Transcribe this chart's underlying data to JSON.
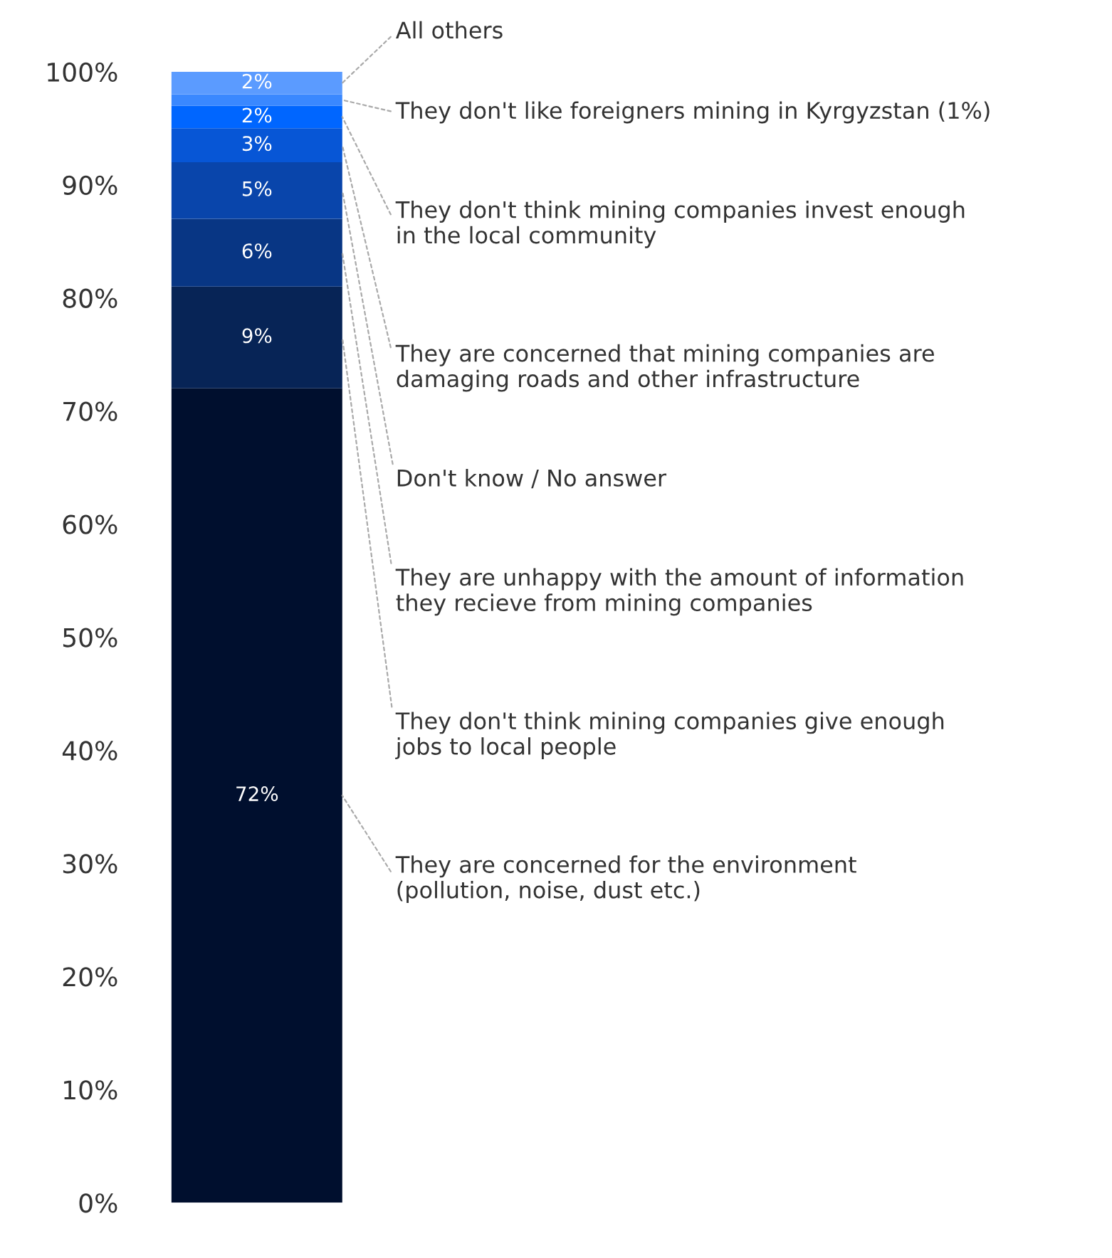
{
  "chart_data": {
    "type": "bar",
    "stacked": true,
    "categories": [
      null
    ],
    "series": [
      {
        "name": "They are concerned for the environment\n(pollution, noise, dust etc.)",
        "color": "#000f2e",
        "values": [
          72
        ],
        "value_labels": [
          "72%"
        ]
      },
      {
        "name": "They don't think mining companies give enough\njobs to local people",
        "color": "#072456",
        "values": [
          9
        ],
        "value_labels": [
          "9%"
        ]
      },
      {
        "name": "They are unhappy with the amount of information\nthey recieve from mining companies",
        "color": "#083684",
        "values": [
          6
        ],
        "value_labels": [
          "6%"
        ]
      },
      {
        "name": "Don't know / No answer",
        "color": "#0945ab",
        "values": [
          5
        ],
        "value_labels": [
          "5%"
        ]
      },
      {
        "name": "They are concerned that mining companies are\ndamaging roads and other infrastructure",
        "color": "#0756d6",
        "values": [
          3
        ],
        "value_labels": [
          "3%"
        ]
      },
      {
        "name": "They don't think mining companies invest enough\nin the local community",
        "color": "#0066ff",
        "values": [
          2
        ],
        "value_labels": [
          "2%"
        ]
      },
      {
        "name": "They don't like foreigners mining in Kyrgyzstan (1%)",
        "color": "#3a88ff",
        "values": [
          1
        ],
        "value_labels": [
          null
        ]
      },
      {
        "name": "All others",
        "color": "#5b9bff",
        "values": [
          2
        ],
        "value_labels": [
          "2%"
        ]
      }
    ],
    "ylim": [
      0,
      100
    ],
    "yticks": [
      {
        "value": 0,
        "label": "0%"
      },
      {
        "value": 10,
        "label": "10%"
      },
      {
        "value": 20,
        "label": "20%"
      },
      {
        "value": 30,
        "label": "30%"
      },
      {
        "value": 40,
        "label": "40%"
      },
      {
        "value": 50,
        "label": "50%"
      },
      {
        "value": 60,
        "label": "60%"
      },
      {
        "value": 70,
        "label": "70%"
      },
      {
        "value": 80,
        "label": "80%"
      },
      {
        "value": 90,
        "label": "90%"
      },
      {
        "value": 100,
        "label": "100%"
      }
    ]
  }
}
